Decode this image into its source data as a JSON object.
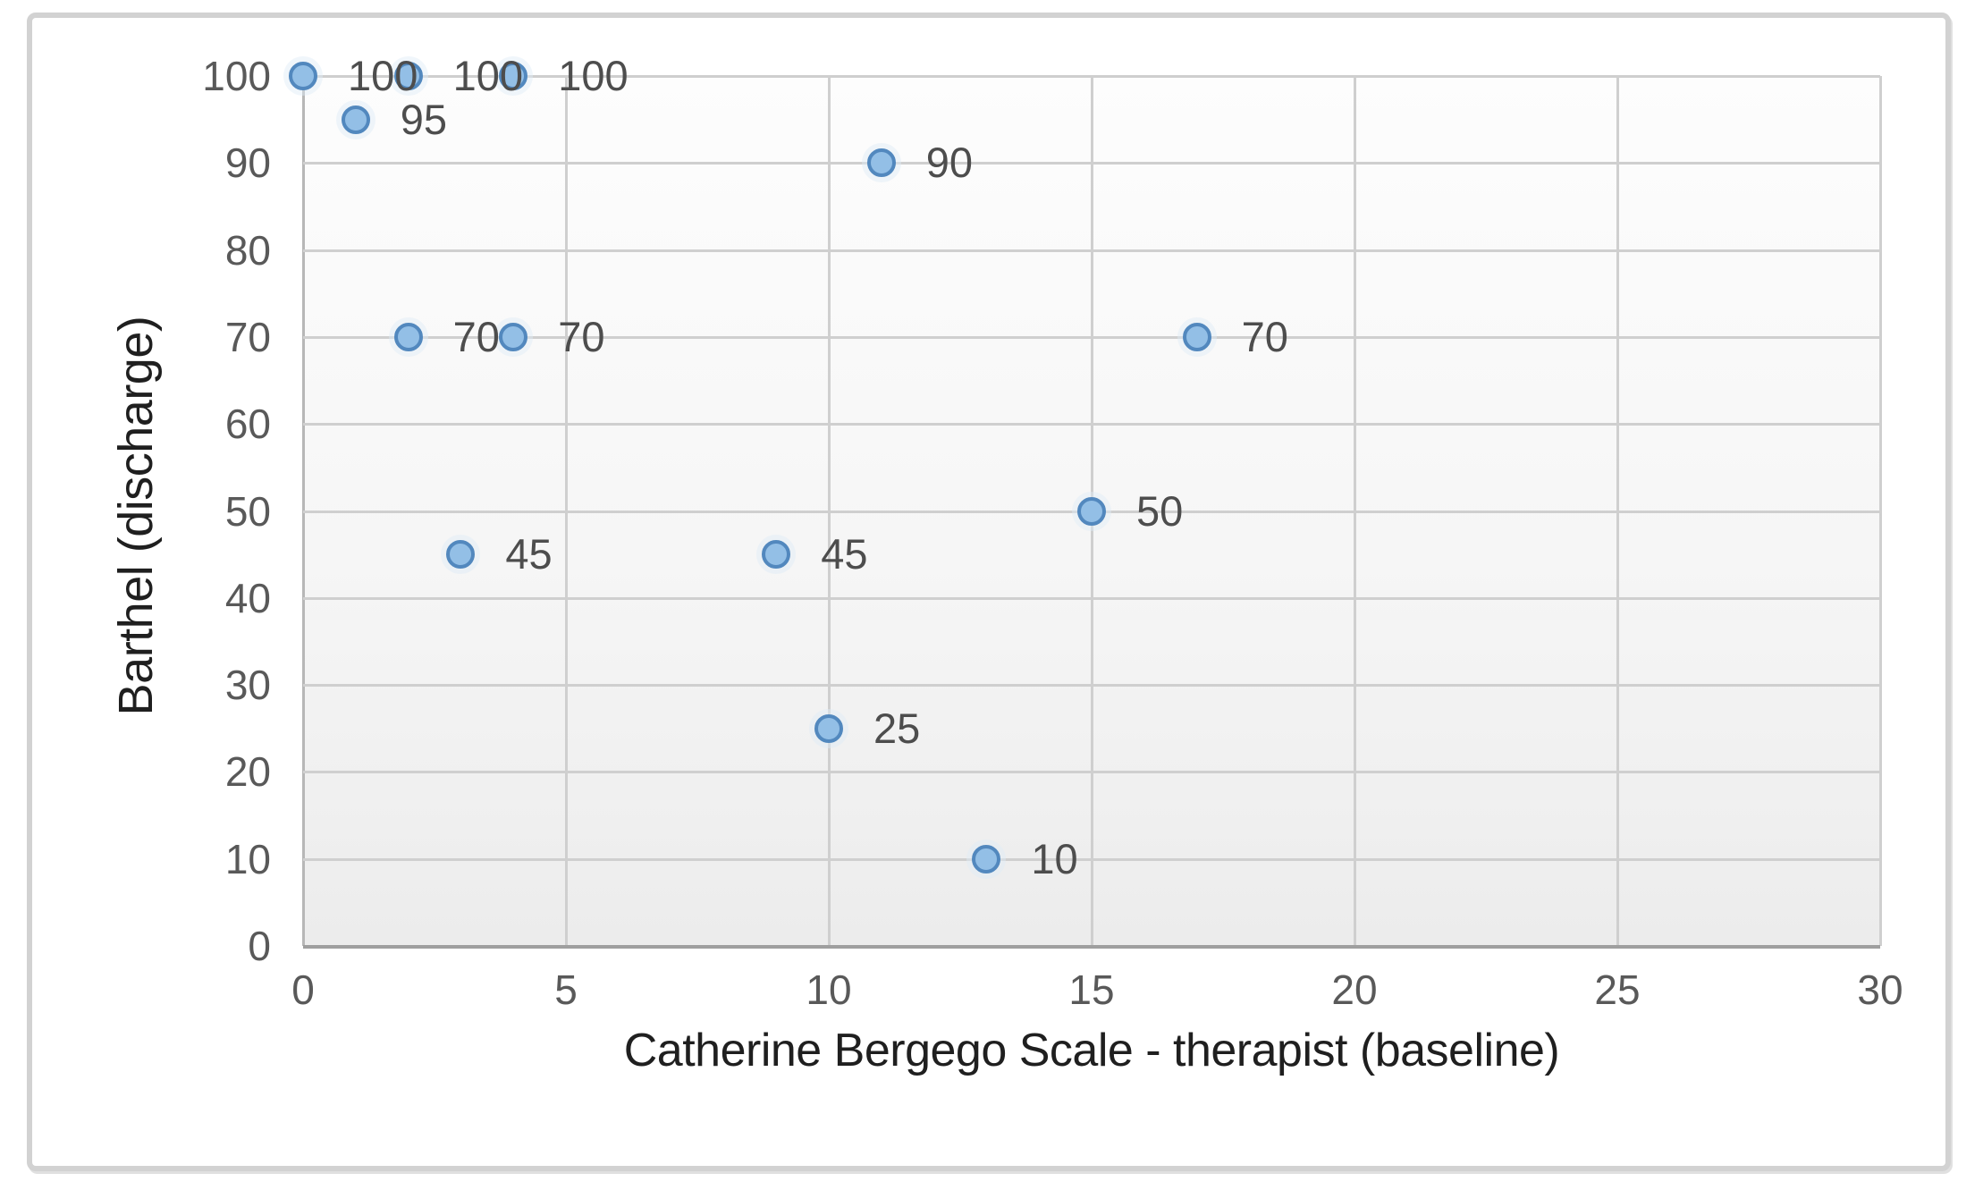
{
  "chart_data": {
    "type": "scatter",
    "title": "",
    "xlabel": "Catherine Bergego Scale - therapist (baseline)",
    "ylabel": "Barthel (discharge)",
    "xlim": [
      0,
      30
    ],
    "ylim": [
      0,
      100
    ],
    "x_ticks": [
      "0",
      "5",
      "10",
      "15",
      "20",
      "25",
      "30"
    ],
    "y_ticks": [
      "0",
      "10",
      "20",
      "30",
      "40",
      "50",
      "60",
      "70",
      "80",
      "90",
      "100"
    ],
    "grid": true,
    "legend": "none",
    "points": [
      {
        "x": 0,
        "y": 100,
        "label": "100"
      },
      {
        "x": 2,
        "y": 100,
        "label": "100"
      },
      {
        "x": 4,
        "y": 100,
        "label": "100"
      },
      {
        "x": 1,
        "y": 95,
        "label": "95"
      },
      {
        "x": 11,
        "y": 90,
        "label": "90"
      },
      {
        "x": 2,
        "y": 70,
        "label": "70"
      },
      {
        "x": 4,
        "y": 70,
        "label": "70"
      },
      {
        "x": 17,
        "y": 70,
        "label": "70"
      },
      {
        "x": 15,
        "y": 50,
        "label": "50"
      },
      {
        "x": 3,
        "y": 45,
        "label": "45"
      },
      {
        "x": 9,
        "y": 45,
        "label": "45"
      },
      {
        "x": 10,
        "y": 25,
        "label": "25"
      },
      {
        "x": 13,
        "y": 10,
        "label": "10"
      }
    ]
  },
  "colors": {
    "marker_fill": "#93BFE6",
    "marker_border": "#5288BE",
    "gridline": "#cfcfcf",
    "axis_line": "#9f9f9f",
    "tick_text": "#595959",
    "label_text": "#4d4d4d",
    "title_text": "#1f1f1f",
    "frame_border": "#d2d2d2"
  }
}
